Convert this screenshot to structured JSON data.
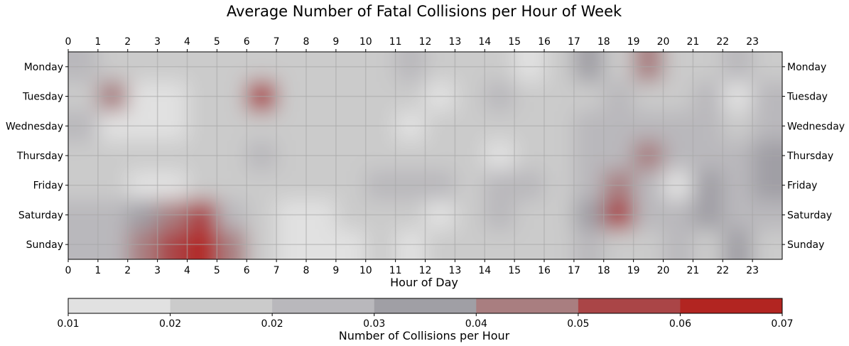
{
  "chart_data": {
    "type": "heatmap",
    "title": "Average Number of Fatal Collisions per Hour of Week",
    "xlabel": "Hour of Day",
    "ylabel": "",
    "x": [
      "0",
      "1",
      "2",
      "3",
      "4",
      "5",
      "6",
      "7",
      "8",
      "9",
      "10",
      "11",
      "12",
      "13",
      "14",
      "15",
      "16",
      "17",
      "18",
      "19",
      "20",
      "21",
      "22",
      "23"
    ],
    "y": [
      "Monday",
      "Tuesday",
      "Wednesday",
      "Thursday",
      "Friday",
      "Saturday",
      "Sunday"
    ],
    "values": [
      [
        0.031,
        0.023,
        0.02,
        0.02,
        0.02,
        0.026,
        0.021,
        0.023,
        0.022,
        0.022,
        0.025,
        0.033,
        0.025,
        0.026,
        0.021,
        0.01,
        0.023,
        0.042,
        0.027,
        0.048,
        0.024,
        0.024,
        0.031,
        0.026
      ],
      [
        0.026,
        0.047,
        0.016,
        0.013,
        0.02,
        0.025,
        0.06,
        0.023,
        0.022,
        0.022,
        0.023,
        0.021,
        0.017,
        0.023,
        0.033,
        0.022,
        0.024,
        0.026,
        0.03,
        0.026,
        0.025,
        0.031,
        0.018,
        0.032
      ],
      [
        0.032,
        0.018,
        0.013,
        0.012,
        0.023,
        0.02,
        0.022,
        0.025,
        0.024,
        0.024,
        0.024,
        0.012,
        0.022,
        0.024,
        0.023,
        0.024,
        0.025,
        0.031,
        0.032,
        0.032,
        0.029,
        0.029,
        0.025,
        0.032
      ],
      [
        0.024,
        0.021,
        0.019,
        0.019,
        0.022,
        0.023,
        0.031,
        0.023,
        0.026,
        0.026,
        0.024,
        0.024,
        0.025,
        0.025,
        0.012,
        0.023,
        0.025,
        0.03,
        0.031,
        0.048,
        0.031,
        0.032,
        0.032,
        0.043
      ],
      [
        0.024,
        0.02,
        0.011,
        0.012,
        0.024,
        0.027,
        0.023,
        0.022,
        0.021,
        0.024,
        0.03,
        0.028,
        0.033,
        0.025,
        0.032,
        0.033,
        0.024,
        0.03,
        0.045,
        0.032,
        0.015,
        0.041,
        0.034,
        0.043
      ],
      [
        0.031,
        0.029,
        0.04,
        0.046,
        0.056,
        0.033,
        0.022,
        0.016,
        0.014,
        0.024,
        0.027,
        0.024,
        0.017,
        0.024,
        0.029,
        0.026,
        0.026,
        0.043,
        0.058,
        0.034,
        0.033,
        0.041,
        0.03,
        0.031
      ],
      [
        0.03,
        0.03,
        0.045,
        0.054,
        0.067,
        0.045,
        0.024,
        0.012,
        0.011,
        0.012,
        0.025,
        0.012,
        0.02,
        0.027,
        0.022,
        0.022,
        0.025,
        0.029,
        0.023,
        0.025,
        0.031,
        0.02,
        0.044,
        0.022
      ]
    ],
    "colorbar": {
      "label": "Number of Collisions per Hour",
      "ticks": [
        "0.01",
        "0.02",
        "0.02",
        "0.03",
        "0.04",
        "0.05",
        "0.06",
        "0.07"
      ],
      "range": [
        0.01,
        0.07
      ],
      "levels": [
        "#e1e1e1",
        "#cbcbcb",
        "#b9b8bc",
        "#a09fa5",
        "#a97e80",
        "#aa4547",
        "#b22521"
      ]
    },
    "grid": true,
    "colors": {
      "low": "#e1e1e1",
      "mid": "#a09fa5",
      "high": "#b22521"
    }
  }
}
